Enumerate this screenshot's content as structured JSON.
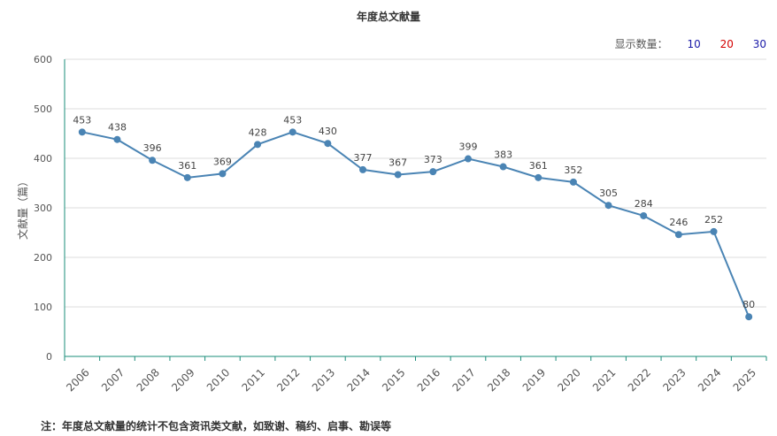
{
  "title": "年度总文献量",
  "show_count": {
    "label": "显示数量：",
    "options": [
      "10",
      "20",
      "30"
    ],
    "option_colors": [
      "#1a1aa8",
      "#d40000",
      "#1a1aa8"
    ]
  },
  "footnote": "注：年度总文献量的统计不包含资讯类文献，如致谢、稿约、启事、勘误等",
  "chart_data": {
    "type": "line",
    "title": "年度总文献量",
    "xlabel": "",
    "ylabel": "文献量（篇）",
    "categories": [
      "2006",
      "2007",
      "2008",
      "2009",
      "2010",
      "2011",
      "2012",
      "2013",
      "2014",
      "2015",
      "2016",
      "2017",
      "2018",
      "2019",
      "2020",
      "2021",
      "2022",
      "2023",
      "2024",
      "2025"
    ],
    "values": [
      453,
      438,
      396,
      361,
      369,
      428,
      453,
      430,
      377,
      367,
      373,
      399,
      383,
      361,
      352,
      305,
      284,
      246,
      252,
      80
    ],
    "ylim": [
      0,
      600
    ],
    "yticks": [
      0,
      100,
      200,
      300,
      400,
      500,
      600
    ],
    "grid": true,
    "line_color": "#4a84b4",
    "axis_color": "#1a8c7a"
  }
}
